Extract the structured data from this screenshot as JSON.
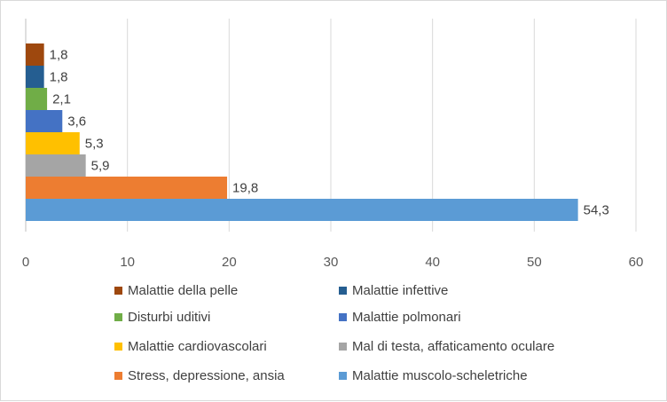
{
  "chart_data": {
    "type": "bar",
    "orientation": "horizontal",
    "title": "",
    "xlabel": "",
    "ylabel": "",
    "xlim": [
      0,
      60
    ],
    "xticks": [
      "0",
      "10",
      "20",
      "30",
      "40",
      "50",
      "60"
    ],
    "grid": "vertical",
    "legend_position": "bottom",
    "series": [
      {
        "name": "Malattie della pelle",
        "value": 1.8,
        "label": "1,8",
        "color": "#9e480e"
      },
      {
        "name": "Malattie infettive",
        "value": 1.8,
        "label": "1,8",
        "color": "#255e91"
      },
      {
        "name": "Disturbi uditivi",
        "value": 2.1,
        "label": "2,1",
        "color": "#70ad47"
      },
      {
        "name": "Malattie polmonari",
        "value": 3.6,
        "label": "3,6",
        "color": "#4472c4"
      },
      {
        "name": "Malattie cardiovascolari",
        "value": 5.3,
        "label": "5,3",
        "color": "#ffc000"
      },
      {
        "name": "Mal di testa, affaticamento oculare",
        "value": 5.9,
        "label": "5,9",
        "color": "#a5a5a5"
      },
      {
        "name": "Stress, depressione, ansia",
        "value": 19.8,
        "label": "19,8",
        "color": "#ed7d31"
      },
      {
        "name": "Malattie muscolo-scheletriche",
        "value": 54.3,
        "label": "54,3",
        "color": "#5b9bd5"
      }
    ]
  }
}
